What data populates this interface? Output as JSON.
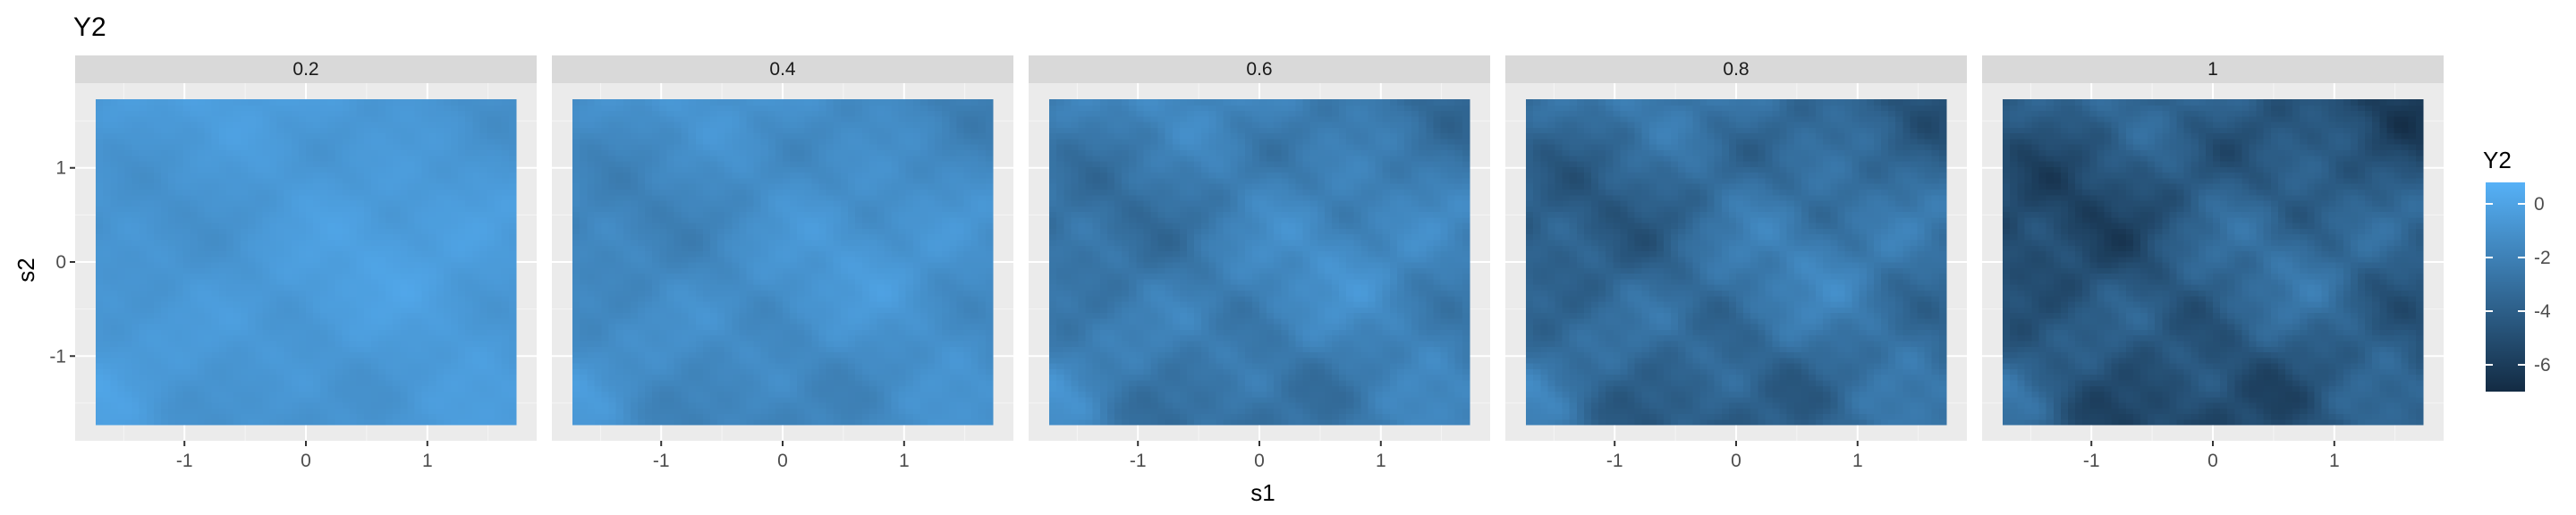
{
  "chart_data": {
    "type": "heatmap",
    "title": "Y2",
    "xlabel": "s1",
    "ylabel": "s2",
    "facets": [
      "0.2",
      "0.4",
      "0.6",
      "0.8",
      "1"
    ],
    "xlim": [
      -1.9,
      1.9
    ],
    "ylim": [
      -1.9,
      1.9
    ],
    "data_extent": {
      "s1": [
        -1.73,
        1.73
      ],
      "s2": [
        -1.73,
        1.73
      ]
    },
    "x_ticks": [
      -1,
      0,
      1
    ],
    "x_tick_labels": [
      "-1",
      "0",
      "1"
    ],
    "y_ticks": [
      -1,
      0,
      1
    ],
    "y_tick_labels": [
      "-1",
      "0",
      "1"
    ],
    "grid": true,
    "legend": {
      "title": "Y2",
      "position": "right",
      "ticks": [
        0,
        -2,
        -4,
        -6
      ],
      "tick_labels": [
        "0",
        "-2",
        "-4",
        "-6"
      ],
      "range": [
        -7.0,
        0.8
      ],
      "color_low": "#132B43",
      "color_high": "#56B1F7"
    },
    "approx_mean_value_by_facet": [
      -0.6,
      -1.3,
      -2.2,
      -3.2,
      -4.3
    ],
    "approx_spread_by_facet": [
      0.6,
      0.9,
      1.3,
      1.6,
      1.8
    ]
  },
  "colors": {
    "panel_background": "#EBEBEB",
    "grid_major": "#FFFFFF",
    "strip_background": "#D9D9D9",
    "axis_text": "#4D4D4D",
    "title_text": "#000000"
  }
}
